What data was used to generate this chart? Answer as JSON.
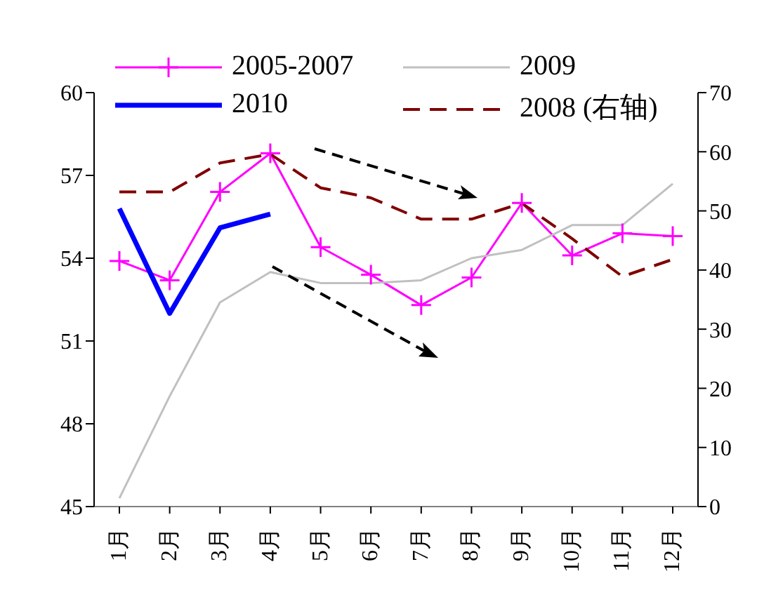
{
  "chart_data": {
    "type": "line",
    "categories": [
      "1月",
      "2月",
      "3月",
      "4月",
      "5月",
      "6月",
      "7月",
      "8月",
      "9月",
      "10月",
      "11月",
      "12月"
    ],
    "series": [
      {
        "name": "2005-2007",
        "color": "#ff00ff",
        "marker": "cross",
        "values": [
          53.9,
          53.2,
          56.4,
          57.8,
          54.4,
          53.4,
          52.3,
          53.3,
          56.0,
          54.1,
          54.9,
          54.8
        ]
      },
      {
        "name": "2009",
        "color": "#c0c0c0",
        "values": [
          45.3,
          49.0,
          52.4,
          53.5,
          53.1,
          53.1,
          53.2,
          54.0,
          54.3,
          55.2,
          55.2,
          56.7
        ]
      },
      {
        "name": "2010",
        "color": "#0000ff",
        "values": [
          55.8,
          52.0,
          55.1,
          55.6,
          null,
          null,
          null,
          null,
          null,
          null,
          null,
          null
        ]
      },
      {
        "name": "2008 (右轴)",
        "color": "#800000",
        "line_style": "dashed",
        "axis": "y2",
        "values": [
          53.2,
          53.2,
          58.1,
          59.6,
          53.9,
          52.2,
          48.6,
          48.6,
          51.3,
          45.3,
          38.9,
          41.8
        ]
      }
    ],
    "ylim": [
      45,
      60
    ],
    "yticks": [
      45,
      48,
      51,
      54,
      57,
      60
    ],
    "y2lim": [
      0,
      70
    ],
    "y2ticks": [
      0,
      10,
      20,
      30,
      40,
      50,
      60,
      70
    ],
    "legend": "top",
    "marker": "none",
    "line_style": "solid"
  }
}
